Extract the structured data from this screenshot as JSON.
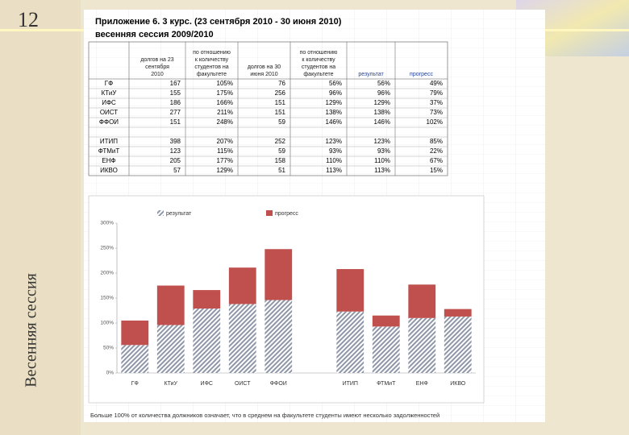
{
  "slide_number": "12",
  "slide_title": "Весенняя сессия",
  "sheet": {
    "title": "Приложение 6.      3 курс.  (23 сентября 2010  -  30 июня 2010)",
    "subtitle": "весенняя сессия 2009/2010",
    "footnote": "Больше 100% от количества должников означает, что в среднем на факультете студенты имеют несколько задолженностей"
  },
  "table": {
    "header": [
      [
        "долгов на 23",
        "сентября",
        "2010"
      ],
      [
        "по отношению",
        "к количеству",
        "студентов на",
        "факультете"
      ],
      [
        "долгов на 30",
        "июня 2010"
      ],
      [
        "по отношению",
        "к количеству",
        "студентов на",
        "факультете"
      ],
      [
        "результат"
      ],
      [
        "прогресс"
      ]
    ],
    "rows": [
      [
        "ГФ",
        "167",
        "105%",
        "76",
        "56%",
        "56%",
        "49%"
      ],
      [
        "КТиУ",
        "155",
        "175%",
        "256",
        "96%",
        "96%",
        "79%"
      ],
      [
        "ИФС",
        "186",
        "166%",
        "151",
        "129%",
        "129%",
        "37%"
      ],
      [
        "ОИСТ",
        "277",
        "211%",
        "151",
        "138%",
        "138%",
        "73%"
      ],
      [
        "ФФОИ",
        "151",
        "248%",
        "59",
        "146%",
        "146%",
        "102%"
      ],
      [
        "ИТИП",
        "398",
        "207%",
        "252",
        "123%",
        "123%",
        "85%"
      ],
      [
        "ФТМиТ",
        "123",
        "115%",
        "59",
        "93%",
        "93%",
        "22%"
      ],
      [
        "ЕНФ",
        "205",
        "177%",
        "158",
        "110%",
        "110%",
        "67%"
      ],
      [
        "ИКВО",
        "57",
        "129%",
        "51",
        "113%",
        "113%",
        "15%"
      ]
    ]
  },
  "chart_data": {
    "type": "bar",
    "stacked": true,
    "categories": [
      "ГФ",
      "КТиУ",
      "ИФС",
      "ОИСТ",
      "ФФОИ",
      null,
      "ИТИП",
      "ФТМиТ",
      "ЕНФ",
      "ИКВО"
    ],
    "series": [
      {
        "name": "результат",
        "color": "url(#hatch)",
        "values": [
          56,
          96,
          129,
          138,
          146,
          null,
          123,
          93,
          110,
          113
        ]
      },
      {
        "name": "прогресс",
        "color": "#c0504d",
        "values": [
          49,
          79,
          37,
          73,
          102,
          null,
          85,
          22,
          67,
          15
        ]
      }
    ],
    "ylim": [
      0,
      300
    ],
    "yticks": [
      {
        "value": 0,
        "label": "0%"
      },
      {
        "value": 50,
        "label": "50%"
      },
      {
        "value": 100,
        "label": "100%"
      },
      {
        "value": 150,
        "label": "150%"
      },
      {
        "value": 200,
        "label": "200%"
      },
      {
        "value": 250,
        "label": "250%"
      },
      {
        "value": 300,
        "label": "300%"
      }
    ],
    "grid": false
  }
}
